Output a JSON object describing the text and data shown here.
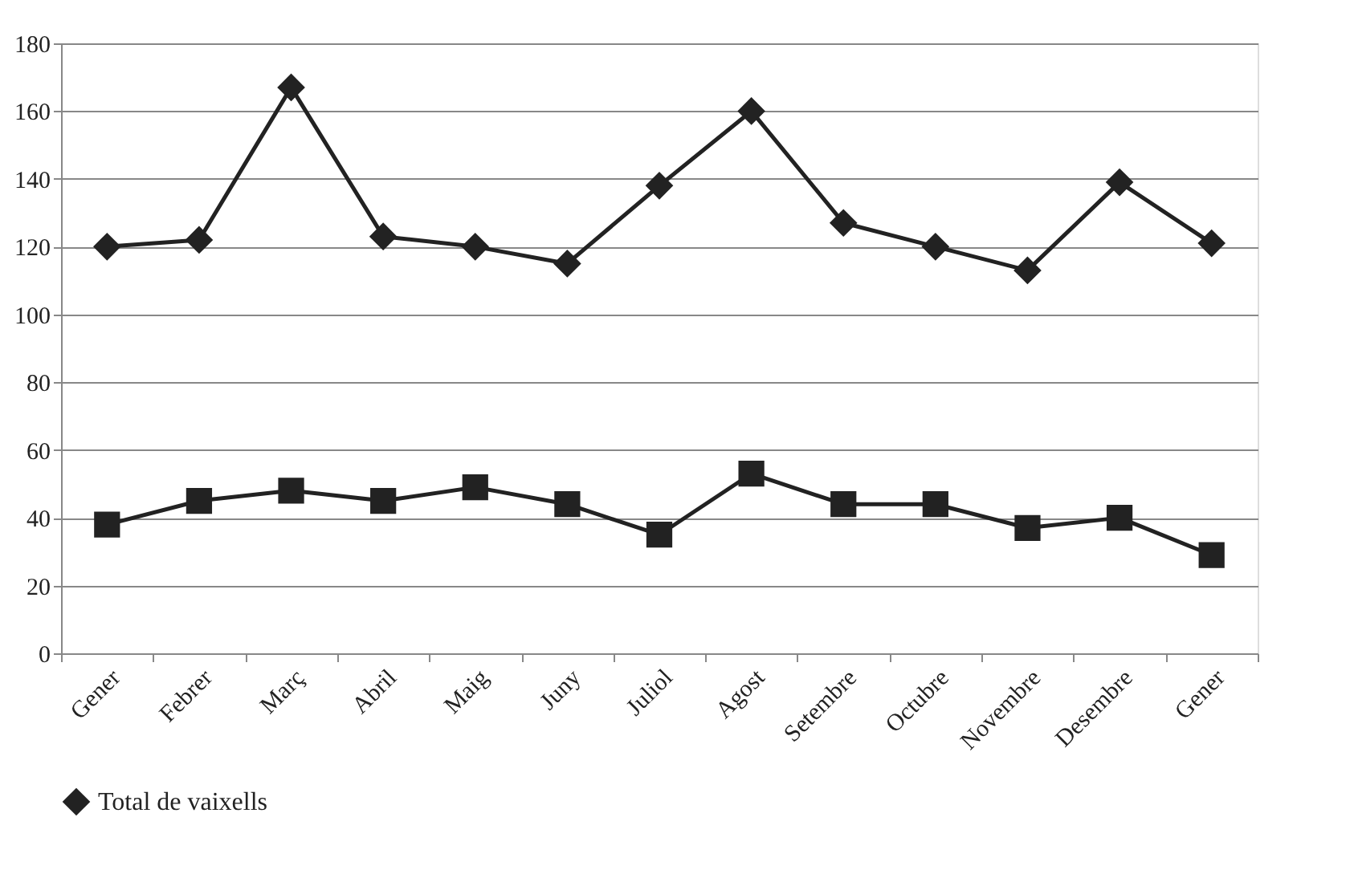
{
  "chart_data": {
    "type": "line",
    "categories": [
      "Gener",
      "Febrer",
      "Març",
      "Abril",
      "Maig",
      "Juny",
      "Juliol",
      "Agost",
      "Setembre",
      "Octubre",
      "Novembre",
      "Desembre",
      "Gener"
    ],
    "series": [
      {
        "name": "Total de vaixells",
        "color": "#222222",
        "marker": "diamond",
        "values": [
          120,
          122,
          167,
          123,
          120,
          115,
          138,
          160,
          127,
          120,
          113,
          139,
          121
        ]
      },
      {
        "color": "#222222",
        "marker": "square",
        "values": [
          38,
          45,
          48,
          45,
          49,
          44,
          35,
          53,
          44,
          44,
          37,
          40,
          29
        ]
      }
    ],
    "ylim": [
      0,
      180
    ],
    "yticks": [
      0,
      20,
      40,
      60,
      80,
      100,
      120,
      140,
      160,
      180
    ],
    "grid": "y",
    "legend": "bottom",
    "line_style": "solid"
  }
}
